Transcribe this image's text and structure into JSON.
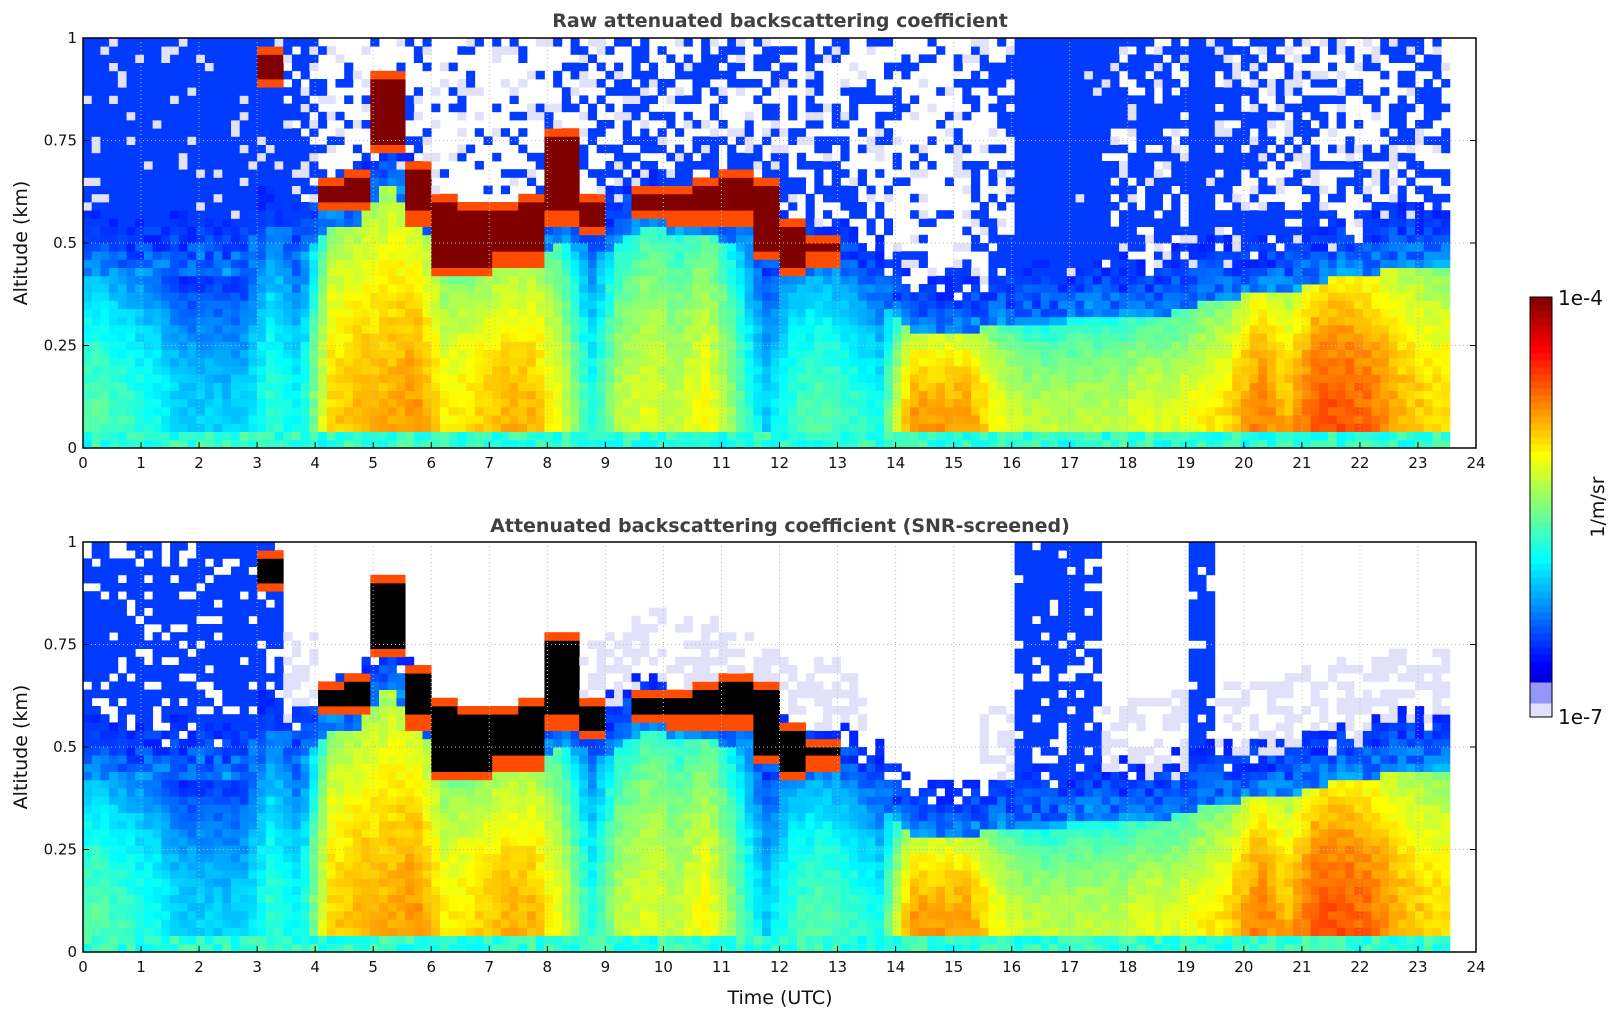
{
  "chart_data": [
    {
      "type": "heatmap",
      "title": "Raw attenuated backscattering coefficient",
      "xlabel": "",
      "ylabel": "Altitude (km)",
      "mode": "raw"
    },
    {
      "type": "heatmap",
      "title": "Attenuated backscattering coefficient (SNR-screened)",
      "xlabel": "Time (UTC)",
      "ylabel": "Altitude (km)",
      "mode": "screened"
    }
  ],
  "axes": {
    "xlim": [
      0,
      24
    ],
    "ylim": [
      0,
      1
    ],
    "xticks": [
      0,
      1,
      2,
      3,
      4,
      5,
      6,
      7,
      8,
      9,
      10,
      11,
      12,
      13,
      14,
      15,
      16,
      17,
      18,
      19,
      20,
      21,
      22,
      23,
      24
    ],
    "yticks": [
      0,
      0.25,
      0.5,
      0.75,
      1
    ],
    "ytick_labels": [
      "0",
      "0.25",
      "0.5",
      "0.75",
      "1"
    ],
    "grid": true,
    "data_end_hour": 23.6
  },
  "colorbar": {
    "label": "1/m/sr",
    "min_label": "1e-7",
    "max_label": "1e-4",
    "log10_range": [
      -7,
      -4
    ],
    "colormap": "jet"
  },
  "profile_half_hourly": {
    "surface_log10_backscatter": [
      -5.6,
      -5.7,
      -5.8,
      -6.0,
      -6.0,
      -6.0,
      -5.7,
      -5.9,
      -5.0,
      -4.9,
      -4.9,
      -4.8,
      -5.1,
      -5.0,
      -4.9,
      -4.9,
      -5.2,
      -5.8,
      -5.3,
      -5.2,
      -5.3,
      -5.1,
      -5.5,
      -6.0,
      -5.7,
      -5.6,
      -5.7,
      -5.8,
      -4.8,
      -4.8,
      -4.8,
      -5.1,
      -5.3,
      -5.3,
      -5.3,
      -5.3,
      -5.2,
      -5.2,
      -5.1,
      -5.0,
      -4.7,
      -4.9,
      -4.6,
      -4.6,
      -4.7,
      -4.9,
      -5.0,
      -5.0
    ],
    "mixing_layer_top_km": [
      0.42,
      0.42,
      0.42,
      0.42,
      0.42,
      0.42,
      0.5,
      0.45,
      0.55,
      0.55,
      0.65,
      0.55,
      0.45,
      0.42,
      0.45,
      0.45,
      0.5,
      0.45,
      0.5,
      0.55,
      0.52,
      0.52,
      0.5,
      0.45,
      0.42,
      0.42,
      0.4,
      0.35,
      0.28,
      0.28,
      0.28,
      0.3,
      0.3,
      0.3,
      0.32,
      0.32,
      0.32,
      0.33,
      0.35,
      0.36,
      0.38,
      0.38,
      0.4,
      0.42,
      0.42,
      0.45,
      0.45,
      0.45
    ],
    "cloud_base_km": [
      null,
      null,
      null,
      null,
      null,
      null,
      0.88,
      null,
      0.58,
      0.58,
      0.72,
      0.55,
      0.42,
      0.42,
      0.45,
      0.45,
      0.55,
      0.52,
      null,
      0.57,
      0.55,
      0.55,
      0.55,
      0.46,
      0.42,
      0.45,
      null,
      null,
      null,
      null,
      null,
      null,
      null,
      null,
      null,
      null,
      null,
      null,
      null,
      null,
      null,
      null,
      null,
      null,
      null,
      null,
      null,
      null
    ],
    "cloud_top_km": [
      null,
      null,
      null,
      null,
      null,
      null,
      0.97,
      null,
      0.65,
      0.67,
      0.92,
      0.7,
      0.62,
      0.6,
      0.6,
      0.62,
      0.78,
      0.62,
      null,
      0.64,
      0.64,
      0.65,
      0.68,
      0.66,
      0.55,
      0.52,
      null,
      null,
      null,
      null,
      null,
      null,
      null,
      null,
      null,
      null,
      null,
      null,
      null,
      null,
      null,
      null,
      null,
      null,
      null,
      null,
      null,
      null
    ],
    "upper_noise_level": [
      0.9,
      0.9,
      0.9,
      0.9,
      0.95,
      0.9,
      0.9,
      0.7,
      0.3,
      0.3,
      0.2,
      0.2,
      0.15,
      0.15,
      0.15,
      0.2,
      0.3,
      0.4,
      0.5,
      0.5,
      0.5,
      0.5,
      0.5,
      0.45,
      0.4,
      0.4,
      0.4,
      0.35,
      0.2,
      0.2,
      0.3,
      0.4,
      1.0,
      1.0,
      0.95,
      0.7,
      0.6,
      0.6,
      0.9,
      0.7,
      0.5,
      0.45,
      0.45,
      0.45,
      0.45,
      0.5,
      0.5,
      0.5
    ]
  }
}
